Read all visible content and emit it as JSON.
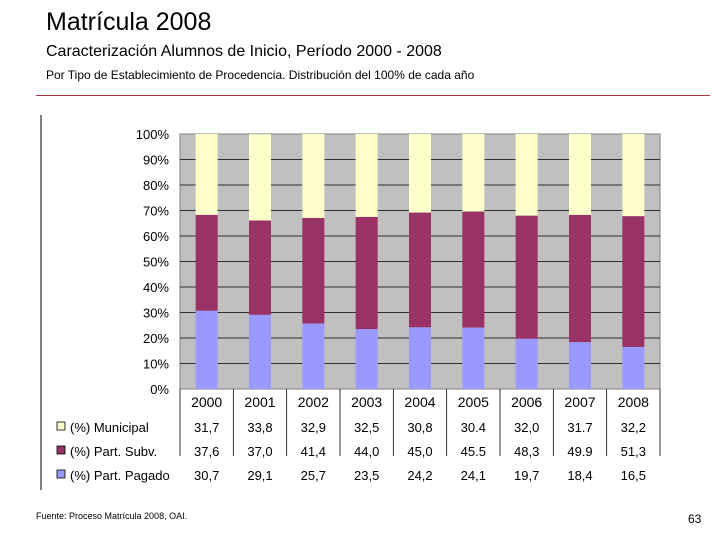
{
  "header": {
    "title": "Matrícula 2008",
    "subtitle": "Caracterización Alumnos de Inicio, Período 2000 - 2008",
    "description": "Por Tipo de Establecimiento de Procedencia. Distribución del 100% de cada año"
  },
  "footer": {
    "source": "Fuente: Proceso Matrícula 2008, OAI.",
    "page_number": "63"
  },
  "colors": {
    "rule": "#b03040",
    "plot_background": "#c0c0c0",
    "municipal": "#ffffcc",
    "part_subv": "#993366",
    "part_pagado": "#9999ff"
  },
  "chart_data": {
    "type": "bar",
    "stacked": true,
    "percent": true,
    "categories": [
      "2000",
      "2001",
      "2002",
      "2003",
      "2004",
      "2005",
      "2006",
      "2007",
      "2008"
    ],
    "ylim": [
      0,
      100
    ],
    "yticks": [
      "0%",
      "10%",
      "20%",
      "30%",
      "40%",
      "50%",
      "60%",
      "70%",
      "80%",
      "90%",
      "100%"
    ],
    "grid": true,
    "legend_position": "bottom (data table)",
    "series": [
      {
        "name": "(%) Part. Pagado",
        "color": "#9999ff",
        "values": [
          30.7,
          29.1,
          25.7,
          23.5,
          24.2,
          24.1,
          19.7,
          18.4,
          16.5
        ],
        "labels": [
          "30,7",
          "29,1",
          "25,7",
          "23,5",
          "24,2",
          "24,1",
          "19,7",
          "18,4",
          "16,5"
        ]
      },
      {
        "name": "(%) Part. Subv.",
        "color": "#993366",
        "values": [
          37.6,
          37.0,
          41.4,
          44.0,
          45.0,
          45.5,
          48.3,
          49.9,
          51.3
        ],
        "labels": [
          "37,6",
          "37,0",
          "41,4",
          "44,0",
          "45,0",
          "45.5",
          "48,3",
          "49.9",
          "51,3"
        ]
      },
      {
        "name": "(%) Municipal",
        "color": "#ffffcc",
        "values": [
          31.7,
          33.8,
          32.9,
          32.5,
          30.8,
          30.4,
          32.0,
          31.7,
          32.2
        ],
        "labels": [
          "31,7",
          "33,8",
          "32,9",
          "32,5",
          "30,8",
          "30.4",
          "32,0",
          "31.7",
          "32,2"
        ]
      }
    ],
    "table_row_order": [
      "(%) Municipal",
      "(%) Part. Subv.",
      "(%) Part. Pagado"
    ]
  }
}
